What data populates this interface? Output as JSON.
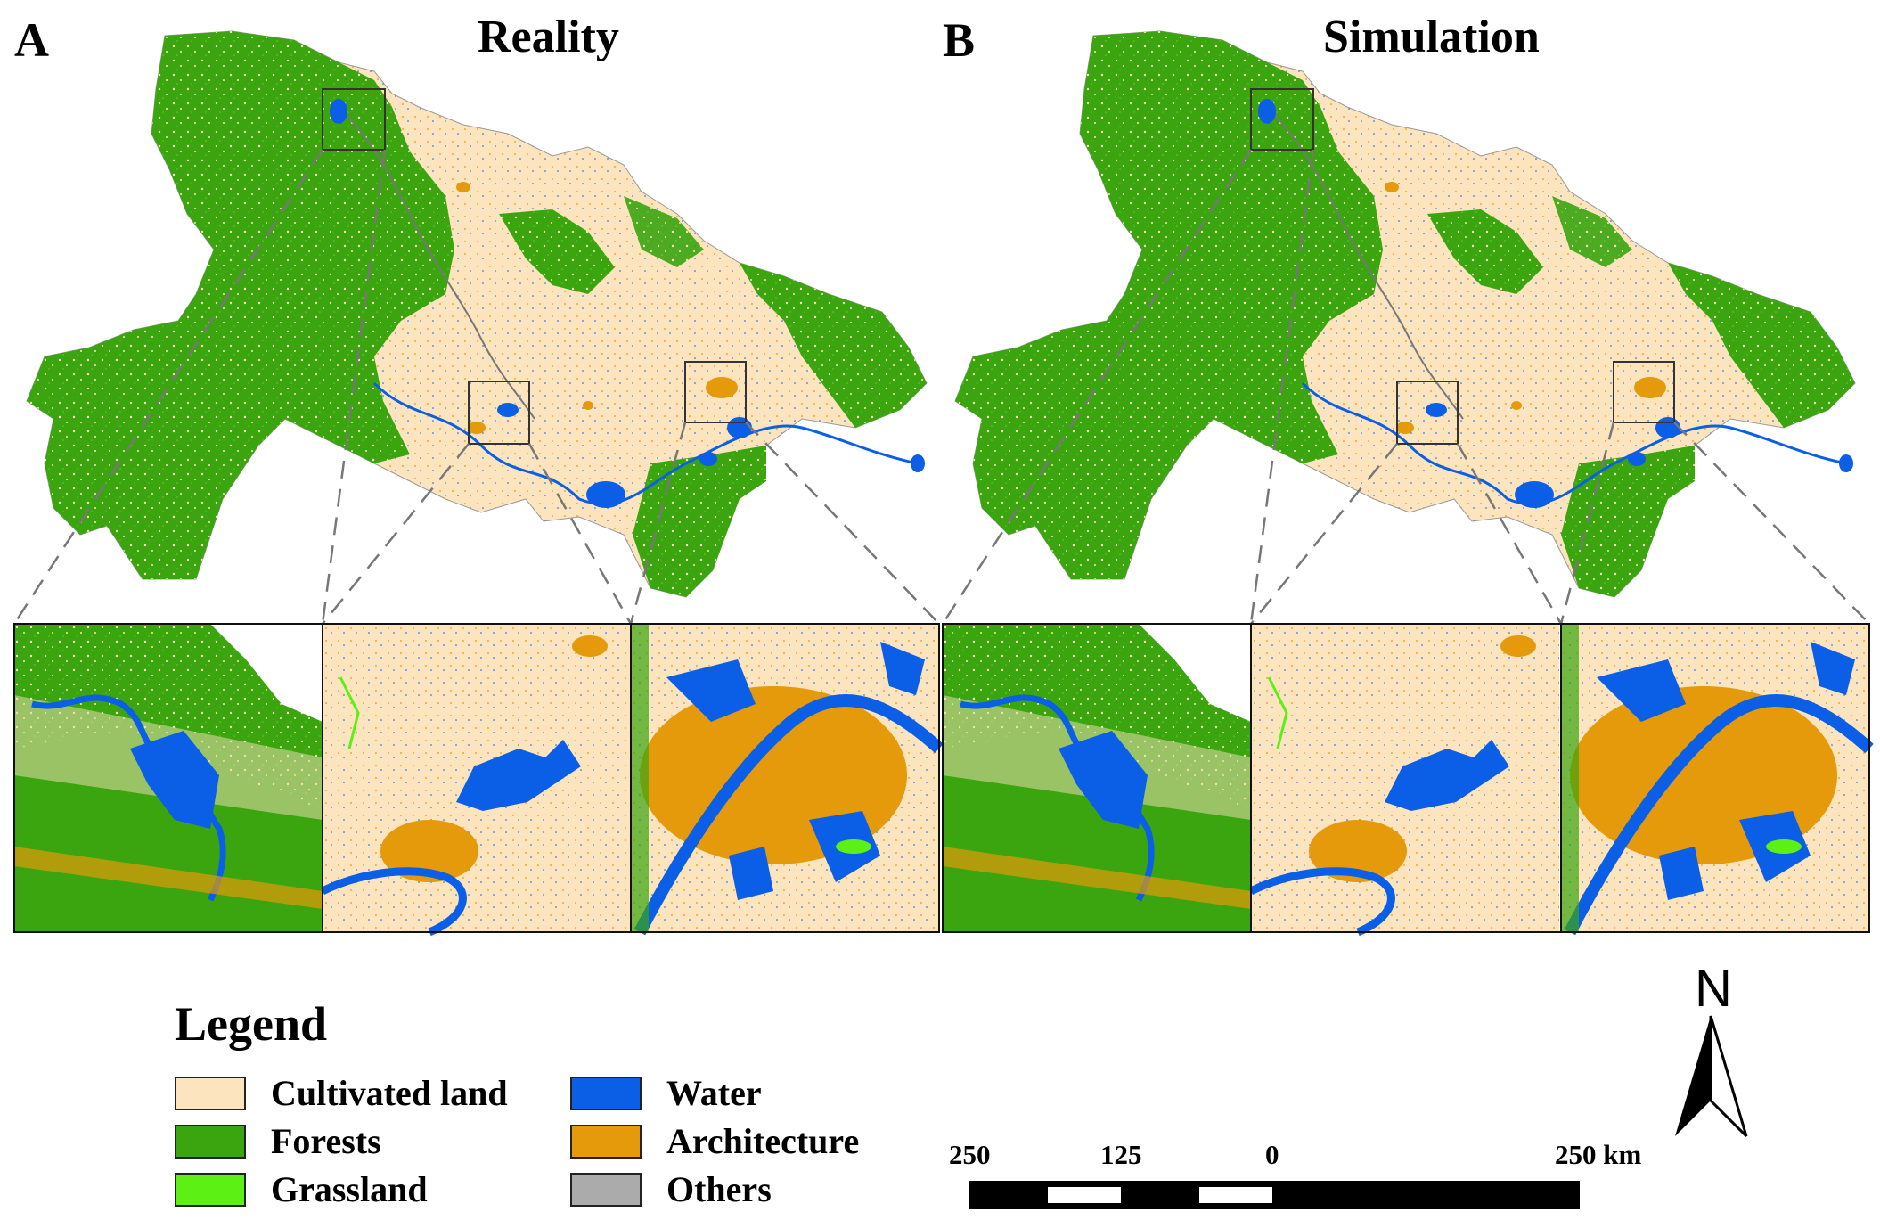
{
  "panels": [
    {
      "letter": "A",
      "title": "Reality"
    },
    {
      "letter": "B",
      "title": "Simulation"
    }
  ],
  "legend": {
    "title": "Legend",
    "items": [
      {
        "label": "Cultivated land",
        "color": "#FCE4BE"
      },
      {
        "label": "Forests",
        "color": "#3AA50F"
      },
      {
        "label": "Grassland",
        "color": "#5CF015"
      },
      {
        "label": "Water",
        "color": "#0A5FE6"
      },
      {
        "label": "Architecture",
        "color": "#E49A0B"
      },
      {
        "label": "Others",
        "color": "#ABABAB"
      }
    ]
  },
  "scale_bar": {
    "labels": [
      "250",
      "125",
      "0",
      "250 km"
    ]
  },
  "north_arrow": {
    "label": "N",
    "icon": "north-arrow-icon"
  }
}
